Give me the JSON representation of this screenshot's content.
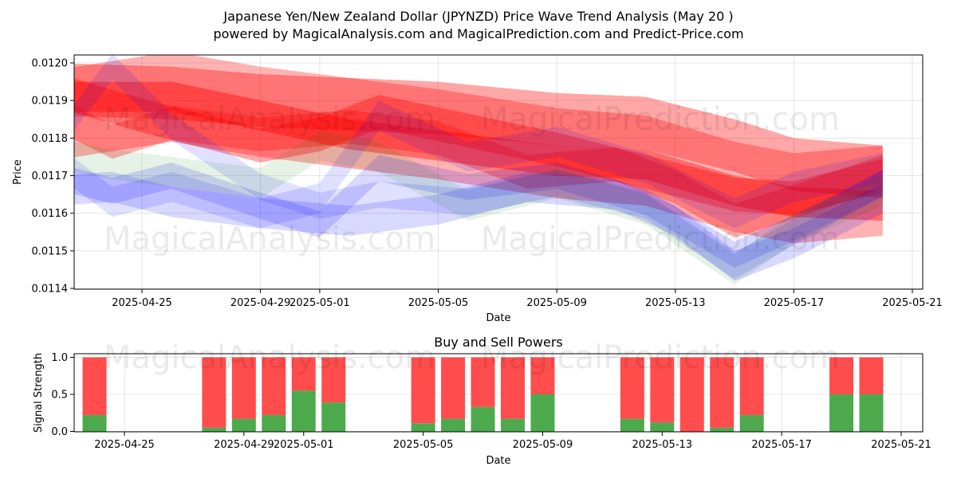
{
  "title_line1": "Japanese Yen/New Zealand Dollar (JPYNZD) Price Wave Trend Analysis (May 20 )",
  "title_line2": "powered by MagicalAnalysis.com and MagicalPrediction.com and Predict-Price.com",
  "watermarks": [
    "MagicalAnalysis.com",
    "MagicalPrediction.com"
  ],
  "colors": {
    "red": "#ff0000",
    "blue": "#0000ff",
    "green": "#008000",
    "buy": "#4caa4c",
    "sell": "#ff4c4c"
  },
  "chart_data": [
    {
      "type": "area",
      "xlabel": "Date",
      "ylabel": "Price",
      "x_ticks": [
        "2025-04-25",
        "2025-04-29",
        "2025-05-01",
        "2025-05-05",
        "2025-05-09",
        "2025-05-13",
        "2025-05-17",
        "2025-05-21"
      ],
      "y_ticks": [
        "0.0114",
        "0.0115",
        "0.0116",
        "0.0117",
        "0.0118",
        "0.0119",
        "0.0120"
      ],
      "xlim": [
        "2025-04-21",
        "2025-05-21"
      ],
      "ylim": [
        0.01139,
        0.012015
      ],
      "grid": true,
      "series": [
        {
          "color": "red",
          "opacity": 0.3,
          "points": [
            [
              "2025-04-22",
              0.01186
            ],
            [
              "2025-04-26",
              0.01191
            ],
            [
              "2025-04-29",
              0.01187
            ],
            [
              "2025-05-02",
              0.01184
            ],
            [
              "2025-05-05",
              0.01181
            ],
            [
              "2025-05-09",
              0.01176
            ],
            [
              "2025-05-12",
              0.01174
            ],
            [
              "2025-05-15",
              0.01167
            ],
            [
              "2025-05-17",
              0.01164
            ],
            [
              "2025-05-20",
              0.01166
            ]
          ],
          "width": 0.00024
        },
        {
          "color": "red",
          "opacity": 0.35,
          "points": [
            [
              "2025-04-22",
              0.01193
            ],
            [
              "2025-04-26",
              0.01192
            ],
            [
              "2025-04-29",
              0.0119
            ],
            [
              "2025-05-02",
              0.01189
            ],
            [
              "2025-05-05",
              0.01188
            ],
            [
              "2025-05-09",
              0.01185
            ],
            [
              "2025-05-12",
              0.01184
            ],
            [
              "2025-05-15",
              0.01178
            ],
            [
              "2025-05-17",
              0.01173
            ],
            [
              "2025-05-20",
              0.01171
            ]
          ],
          "width": 0.00014
        },
        {
          "color": "red",
          "opacity": 0.4,
          "points": [
            [
              "2025-04-22",
              0.01191
            ],
            [
              "2025-04-26",
              0.01191
            ],
            [
              "2025-04-29",
              0.01186
            ],
            [
              "2025-05-02",
              0.01181
            ],
            [
              "2025-05-05",
              0.01178
            ],
            [
              "2025-05-09",
              0.01174
            ],
            [
              "2025-05-12",
              0.01173
            ],
            [
              "2025-05-15",
              0.01166
            ],
            [
              "2025-05-17",
              0.01163
            ],
            [
              "2025-05-20",
              0.01162
            ]
          ],
          "width": 8e-05
        },
        {
          "color": "red",
          "opacity": 0.35,
          "points": [
            [
              "2025-04-22",
              0.01193
            ],
            [
              "2025-04-25",
              0.01186
            ],
            [
              "2025-04-29",
              0.01178
            ],
            [
              "2025-05-01",
              0.01181
            ],
            [
              "2025-05-03",
              0.01187
            ],
            [
              "2025-05-06",
              0.01182
            ],
            [
              "2025-05-09",
              0.01177
            ],
            [
              "2025-05-12",
              0.01171
            ],
            [
              "2025-05-15",
              0.01165
            ],
            [
              "2025-05-17",
              0.01164
            ],
            [
              "2025-05-20",
              0.0117
            ]
          ],
          "width": 9e-05
        },
        {
          "color": "red",
          "opacity": 0.3,
          "points": [
            [
              "2025-04-22",
              0.01187
            ],
            [
              "2025-04-24",
              0.01179
            ],
            [
              "2025-04-26",
              0.01184
            ],
            [
              "2025-04-29",
              0.01181
            ],
            [
              "2025-05-02",
              0.01183
            ],
            [
              "2025-05-05",
              0.0118
            ],
            [
              "2025-05-08",
              0.01171
            ],
            [
              "2025-05-11",
              0.01173
            ],
            [
              "2025-05-13",
              0.01167
            ],
            [
              "2025-05-15",
              0.01158
            ],
            [
              "2025-05-17",
              0.01163
            ],
            [
              "2025-05-20",
              0.01171
            ]
          ],
          "width": 9e-05
        },
        {
          "color": "blue",
          "opacity": 0.15,
          "points": [
            [
              "2025-04-22",
              0.01166
            ],
            [
              "2025-04-24",
              0.01167
            ],
            [
              "2025-04-26",
              0.01163
            ],
            [
              "2025-04-29",
              0.0116
            ],
            [
              "2025-05-02",
              0.01158
            ],
            [
              "2025-05-05",
              0.01161
            ],
            [
              "2025-05-08",
              0.01167
            ],
            [
              "2025-05-11",
              0.01165
            ],
            [
              "2025-05-13",
              0.01158
            ],
            [
              "2025-05-15",
              0.01146
            ],
            [
              "2025-05-17",
              0.01152
            ],
            [
              "2025-05-20",
              0.01164
            ]
          ],
          "width": 8e-05
        },
        {
          "color": "blue",
          "opacity": 0.15,
          "points": [
            [
              "2025-04-22",
              0.0117
            ],
            [
              "2025-04-24",
              0.01166
            ],
            [
              "2025-04-26",
              0.0117
            ],
            [
              "2025-04-29",
              0.01162
            ],
            [
              "2025-05-01",
              0.01157
            ],
            [
              "2025-05-03",
              0.01172
            ],
            [
              "2025-05-06",
              0.01167
            ],
            [
              "2025-05-09",
              0.0117
            ],
            [
              "2025-05-12",
              0.01163
            ],
            [
              "2025-05-15",
              0.01149
            ],
            [
              "2025-05-17",
              0.01156
            ],
            [
              "2025-05-20",
              0.01168
            ]
          ],
          "width": 7e-05
        },
        {
          "color": "blue",
          "opacity": 0.12,
          "points": [
            [
              "2025-04-22",
              0.01178
            ],
            [
              "2025-04-24",
              0.01199
            ],
            [
              "2025-04-26",
              0.01183
            ],
            [
              "2025-04-29",
              0.01167
            ],
            [
              "2025-05-01",
              0.01162
            ],
            [
              "2025-05-03",
              0.01165
            ],
            [
              "2025-05-06",
              0.01163
            ],
            [
              "2025-05-09",
              0.01168
            ],
            [
              "2025-05-12",
              0.01162
            ],
            [
              "2025-05-15",
              0.01146
            ],
            [
              "2025-05-17",
              0.01155
            ],
            [
              "2025-05-20",
              0.01168
            ]
          ],
          "width": 7e-05
        },
        {
          "color": "blue",
          "opacity": 0.12,
          "points": [
            [
              "2025-04-22",
              0.01175
            ],
            [
              "2025-04-24",
              0.01163
            ],
            [
              "2025-04-26",
              0.01167
            ],
            [
              "2025-04-29",
              0.0116
            ],
            [
              "2025-05-01",
              0.01164
            ],
            [
              "2025-05-03",
              0.01186
            ],
            [
              "2025-05-06",
              0.01175
            ],
            [
              "2025-05-09",
              0.01179
            ],
            [
              "2025-05-12",
              0.01172
            ],
            [
              "2025-05-15",
              0.0116
            ],
            [
              "2025-05-17",
              0.01167
            ],
            [
              "2025-05-20",
              0.01172
            ]
          ],
          "width": 8e-05
        },
        {
          "color": "green",
          "opacity": 0.1,
          "points": [
            [
              "2025-04-22",
              0.01176
            ],
            [
              "2025-04-24",
              0.01173
            ],
            [
              "2025-04-26",
              0.01171
            ],
            [
              "2025-04-29",
              0.01168
            ],
            [
              "2025-05-01",
              0.01178
            ],
            [
              "2025-05-03",
              0.01175
            ],
            [
              "2025-05-06",
              0.01162
            ],
            [
              "2025-05-09",
              0.01168
            ],
            [
              "2025-05-12",
              0.01161
            ],
            [
              "2025-05-15",
              0.01145
            ],
            [
              "2025-05-17",
              0.01156
            ],
            [
              "2025-05-20",
              0.01166
            ]
          ],
          "width": 8e-05
        }
      ]
    },
    {
      "type": "bar",
      "title": "Buy and Sell Powers",
      "xlabel": "Date",
      "ylabel": "Signal Strength",
      "x_ticks": [
        "2025-04-25",
        "2025-04-29",
        "2025-05-01",
        "2025-05-05",
        "2025-05-09",
        "2025-05-13",
        "2025-05-17",
        "2025-05-21"
      ],
      "y_ticks": [
        "0.0",
        "0.5",
        "1.0"
      ],
      "xlim": [
        "2025-04-21",
        "2025-05-21"
      ],
      "ylim": [
        0,
        1.05
      ],
      "grid": true,
      "categories": [
        "2025-04-24",
        "2025-04-28",
        "2025-04-29",
        "2025-04-30",
        "2025-05-01",
        "2025-05-02",
        "2025-05-05",
        "2025-05-06",
        "2025-05-07",
        "2025-05-08",
        "2025-05-09",
        "2025-05-12",
        "2025-05-13",
        "2025-05-14",
        "2025-05-15",
        "2025-05-16",
        "2025-05-19",
        "2025-05-20"
      ],
      "series": [
        {
          "name": "Buy",
          "values": [
            0.22,
            0.05,
            0.17,
            0.22,
            0.55,
            0.39,
            0.11,
            0.17,
            0.33,
            0.17,
            0.5,
            0.17,
            0.12,
            0.0,
            0.05,
            0.22,
            0.5,
            0.5
          ]
        },
        {
          "name": "Sell",
          "values": [
            0.78,
            0.95,
            0.83,
            0.78,
            0.45,
            0.61,
            0.89,
            0.83,
            0.67,
            0.83,
            0.5,
            0.83,
            0.88,
            1.0,
            0.95,
            0.78,
            0.5,
            0.5
          ]
        }
      ]
    }
  ]
}
